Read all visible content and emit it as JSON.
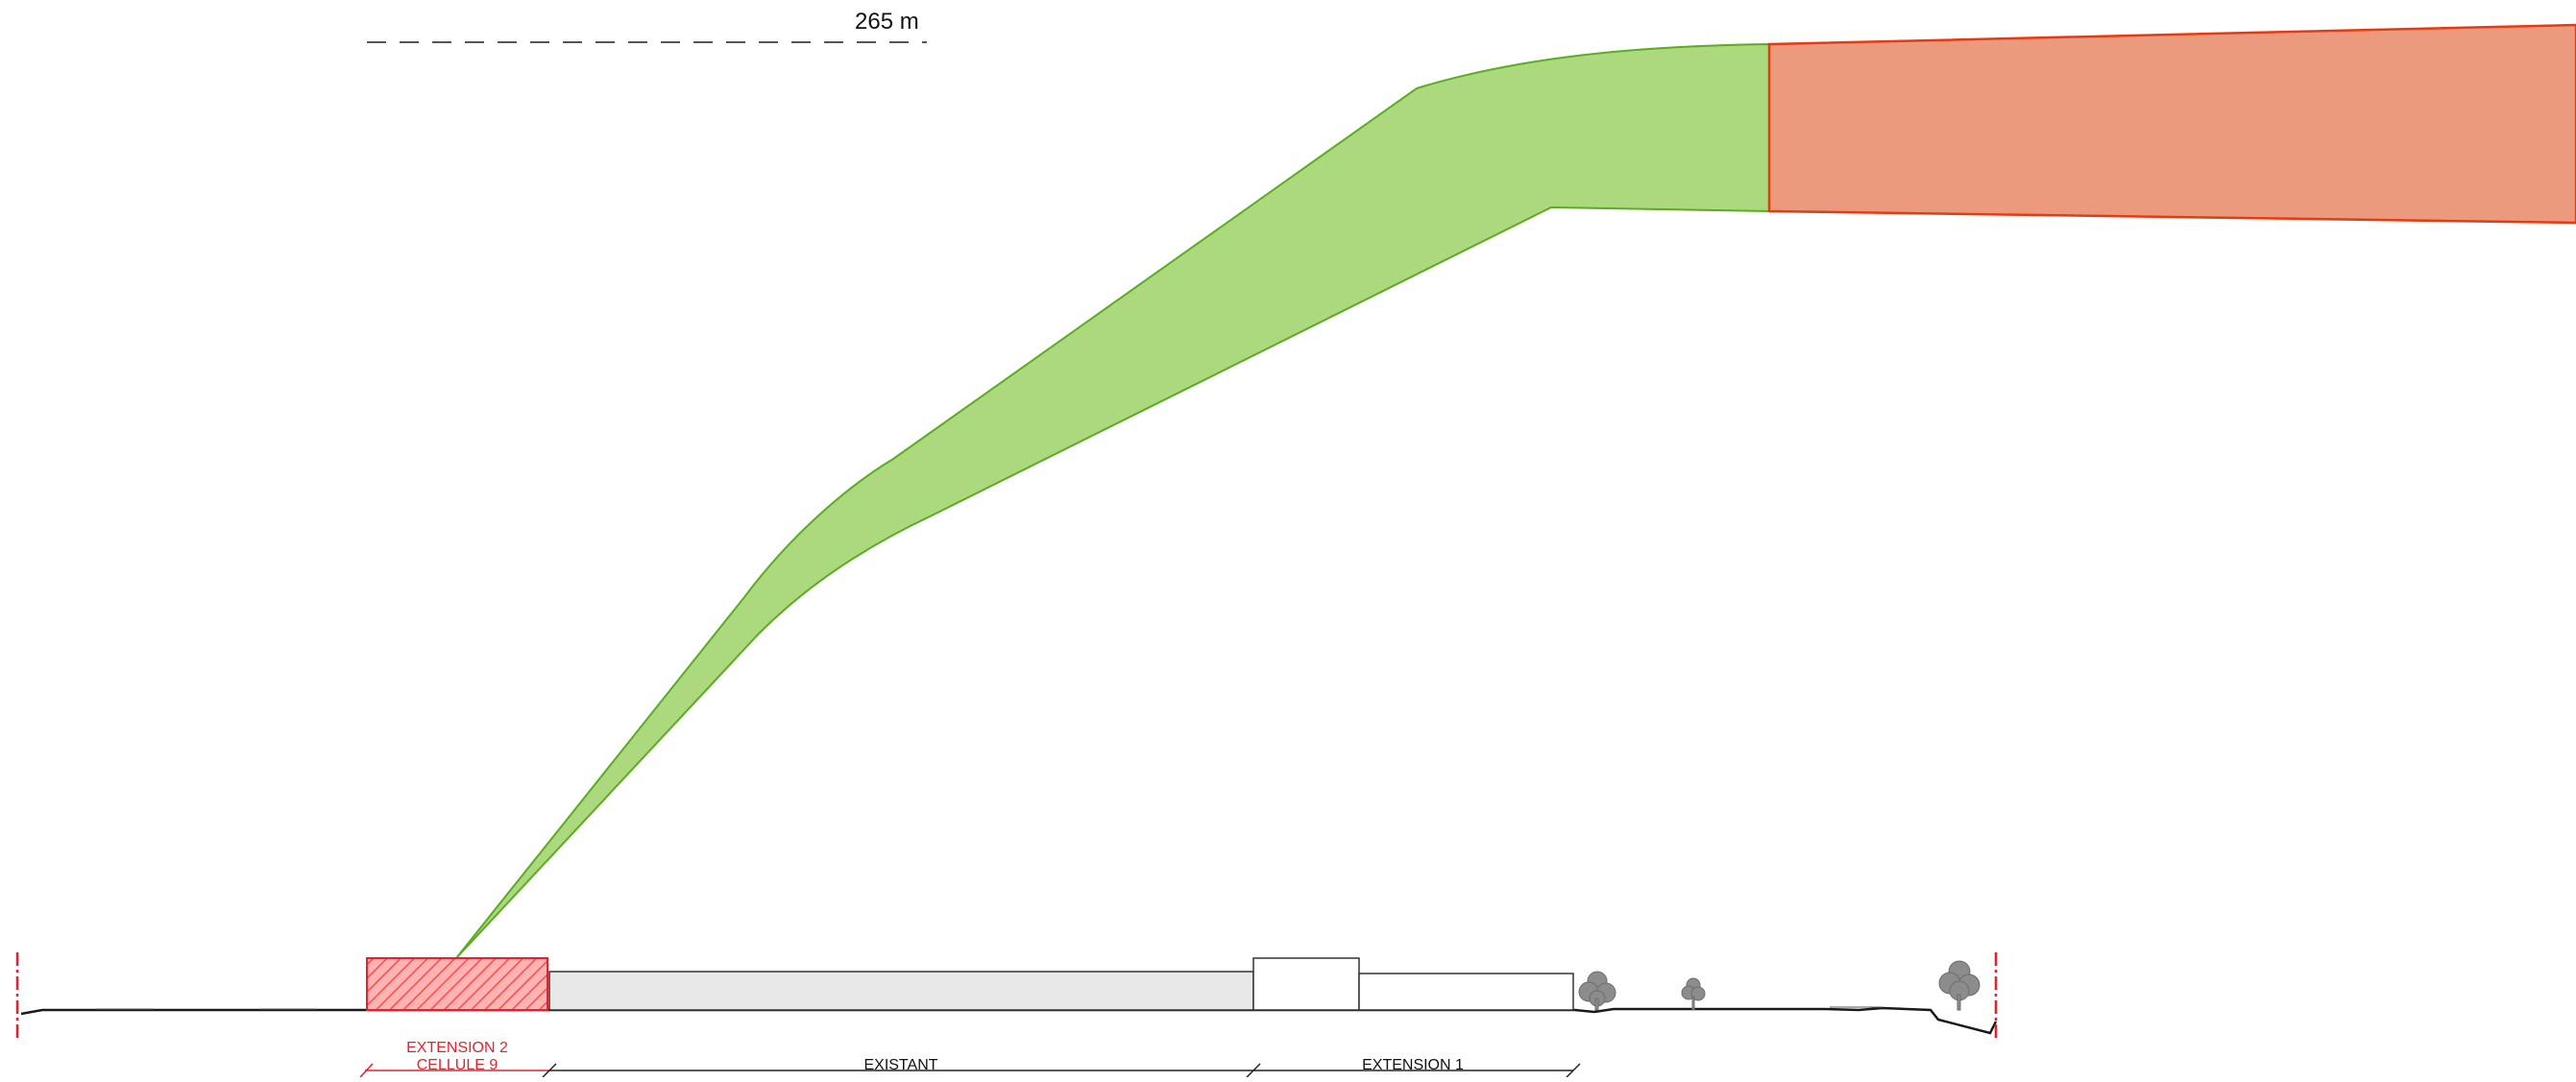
{
  "scale": {
    "label": "265 m"
  },
  "sections": {
    "extension2": {
      "line1": "EXTENSION 2",
      "line2": "CELLULE 9",
      "color": "#e8202a"
    },
    "existant": {
      "label": "EXISTANT"
    },
    "extension1": {
      "label": "EXTENSION 1"
    }
  },
  "colors": {
    "flame_green_fill": "#acd97e",
    "flame_green_stroke": "#5cab22",
    "flame_red_fill": "#ec9a7e",
    "flame_red_stroke": "#e63a12",
    "hatch_red": "#ff8a8a",
    "building_grey": "#e8e8e8",
    "tree_grey": "#8c8c8c",
    "ground": "#1a1a1a"
  }
}
